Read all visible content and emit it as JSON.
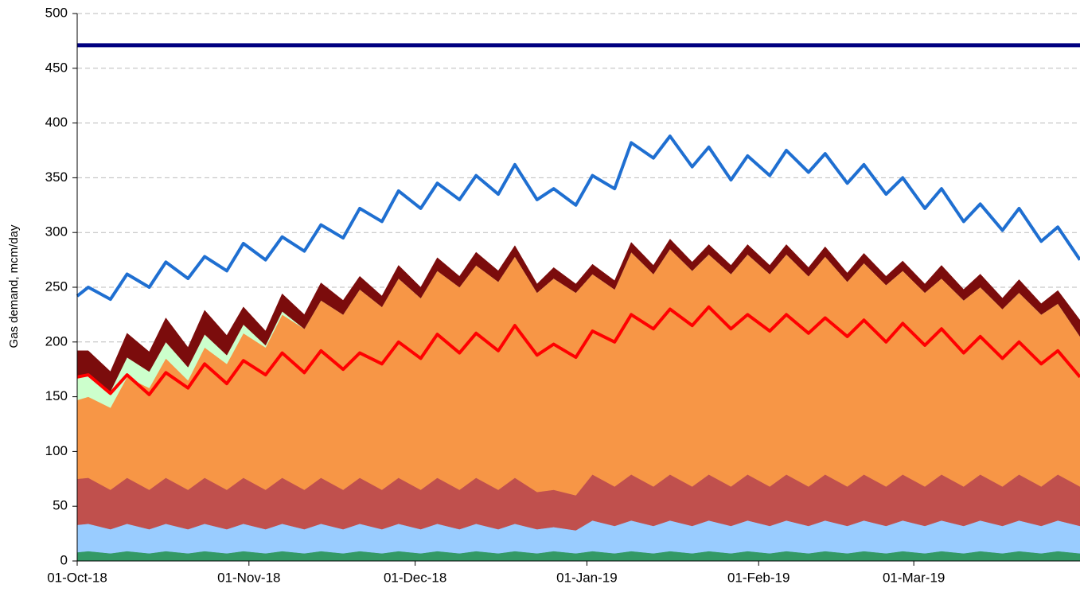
{
  "chart_data": {
    "type": "area",
    "y_label": "Gas demand, mcm/day",
    "x": [
      "2018-10-01",
      "2018-10-03",
      "2018-10-07",
      "2018-10-10",
      "2018-10-14",
      "2018-10-17",
      "2018-10-21",
      "2018-10-24",
      "2018-10-28",
      "2018-10-31",
      "2018-11-04",
      "2018-11-07",
      "2018-11-11",
      "2018-11-14",
      "2018-11-18",
      "2018-11-21",
      "2018-11-25",
      "2018-11-28",
      "2018-12-02",
      "2018-12-05",
      "2018-12-09",
      "2018-12-12",
      "2018-12-16",
      "2018-12-19",
      "2018-12-23",
      "2018-12-26",
      "2018-12-30",
      "2019-01-02",
      "2019-01-06",
      "2019-01-09",
      "2019-01-13",
      "2019-01-16",
      "2019-01-20",
      "2019-01-23",
      "2019-01-27",
      "2019-01-30",
      "2019-02-03",
      "2019-02-06",
      "2019-02-10",
      "2019-02-13",
      "2019-02-17",
      "2019-02-20",
      "2019-02-24",
      "2019-02-27",
      "2019-03-03",
      "2019-03-06",
      "2019-03-10",
      "2019-03-13",
      "2019-03-17",
      "2019-03-20",
      "2019-03-24",
      "2019-03-27",
      "2019-03-31"
    ],
    "series": [
      {
        "kind": "area",
        "color": "#339966",
        "values": [
          8,
          9,
          7,
          9,
          7,
          9,
          7,
          9,
          7,
          9,
          7,
          9,
          7,
          9,
          7,
          9,
          7,
          9,
          7,
          9,
          7,
          9,
          7,
          9,
          7,
          9,
          7,
          9,
          7,
          9,
          7,
          9,
          7,
          9,
          7,
          9,
          7,
          9,
          7,
          9,
          7,
          9,
          7,
          9,
          7,
          9,
          7,
          9,
          7,
          9,
          7,
          9,
          7
        ]
      },
      {
        "kind": "area",
        "color": "#99ccff",
        "values": [
          25,
          25,
          22,
          25,
          22,
          25,
          22,
          25,
          22,
          25,
          22,
          25,
          22,
          25,
          22,
          25,
          22,
          25,
          22,
          25,
          22,
          25,
          22,
          25,
          22,
          22,
          21,
          28,
          25,
          28,
          25,
          28,
          25,
          28,
          25,
          28,
          25,
          28,
          25,
          28,
          25,
          28,
          25,
          28,
          25,
          28,
          25,
          28,
          25,
          28,
          25,
          28,
          25
        ]
      },
      {
        "kind": "area",
        "color": "#c0504d",
        "values": [
          42,
          42,
          36,
          42,
          36,
          42,
          36,
          42,
          36,
          42,
          36,
          42,
          36,
          42,
          36,
          42,
          36,
          42,
          36,
          42,
          36,
          42,
          36,
          42,
          34,
          34,
          32,
          42,
          36,
          42,
          36,
          42,
          36,
          42,
          36,
          42,
          36,
          42,
          36,
          42,
          36,
          42,
          36,
          42,
          36,
          42,
          36,
          42,
          36,
          42,
          36,
          42,
          36
        ]
      },
      {
        "kind": "area",
        "color": "#f79646",
        "values": [
          72,
          74,
          75,
          92,
          93,
          109,
          100,
          119,
          115,
          132,
          130,
          149,
          147,
          162,
          160,
          172,
          167,
          182,
          175,
          189,
          185,
          194,
          190,
          202,
          182,
          193,
          185,
          183,
          180,
          203,
          194,
          206,
          197,
          201,
          194,
          201,
          194,
          201,
          192,
          199,
          187,
          193,
          184,
          186,
          177,
          179,
          170,
          171,
          162,
          166,
          157,
          156,
          137
        ]
      },
      {
        "kind": "area",
        "color": "#ccffcc",
        "values": [
          20,
          20,
          15,
          18,
          15,
          15,
          12,
          12,
          8,
          8,
          2,
          3,
          0,
          0,
          0,
          0,
          0,
          0,
          0,
          0,
          0,
          0,
          0,
          0,
          0,
          0,
          0,
          0,
          0,
          0,
          0,
          0,
          0,
          0,
          0,
          0,
          0,
          0,
          0,
          0,
          0,
          0,
          0,
          0,
          0,
          0,
          0,
          0,
          0,
          0,
          0,
          0,
          0
        ]
      },
      {
        "kind": "area",
        "color": "#7b0c0c",
        "values": [
          25,
          22,
          18,
          22,
          18,
          22,
          18,
          22,
          18,
          16,
          13,
          16,
          13,
          16,
          13,
          12,
          10,
          12,
          10,
          12,
          10,
          12,
          10,
          10,
          8,
          10,
          8,
          9,
          8,
          9,
          8,
          9,
          8,
          9,
          8,
          9,
          8,
          9,
          8,
          9,
          8,
          9,
          8,
          9,
          8,
          12,
          10,
          12,
          10,
          12,
          10,
          12,
          15
        ]
      },
      {
        "kind": "line",
        "color": "#ff0000",
        "values": [
          168,
          170,
          153,
          170,
          152,
          172,
          158,
          180,
          162,
          183,
          170,
          190,
          172,
          192,
          175,
          190,
          180,
          200,
          185,
          207,
          190,
          208,
          192,
          215,
          188,
          198,
          186,
          210,
          200,
          225,
          212,
          230,
          215,
          232,
          212,
          225,
          210,
          225,
          208,
          222,
          205,
          220,
          200,
          217,
          197,
          212,
          190,
          205,
          185,
          200,
          180,
          192,
          168
        ]
      },
      {
        "kind": "line",
        "color": "#1f6fd1",
        "values": [
          242,
          250,
          239,
          262,
          250,
          273,
          258,
          278,
          265,
          290,
          275,
          296,
          283,
          307,
          295,
          322,
          310,
          338,
          322,
          345,
          330,
          352,
          335,
          362,
          330,
          340,
          325,
          352,
          340,
          382,
          368,
          388,
          360,
          378,
          348,
          370,
          352,
          375,
          355,
          372,
          345,
          362,
          335,
          350,
          322,
          340,
          310,
          326,
          302,
          322,
          292,
          305,
          275
        ]
      }
    ],
    "reference_lines": [
      {
        "value": 471,
        "color": "#000080"
      }
    ],
    "xlim": [
      "2018-10-01",
      "2019-03-31"
    ],
    "xticks": [
      {
        "value": "2018-10-01",
        "label": "01-Oct-18"
      },
      {
        "value": "2018-11-01",
        "label": "01-Nov-18"
      },
      {
        "value": "2018-12-01",
        "label": "01-Dec-18"
      },
      {
        "value": "2019-01-01",
        "label": "01-Jan-19"
      },
      {
        "value": "2019-02-01",
        "label": "01-Feb-19"
      },
      {
        "value": "2019-03-01",
        "label": "01-Mar-19"
      }
    ],
    "ylim": [
      0,
      500
    ],
    "yticks": [
      0,
      50,
      100,
      150,
      200,
      250,
      300,
      350,
      400,
      450,
      500
    ],
    "grid": true
  }
}
